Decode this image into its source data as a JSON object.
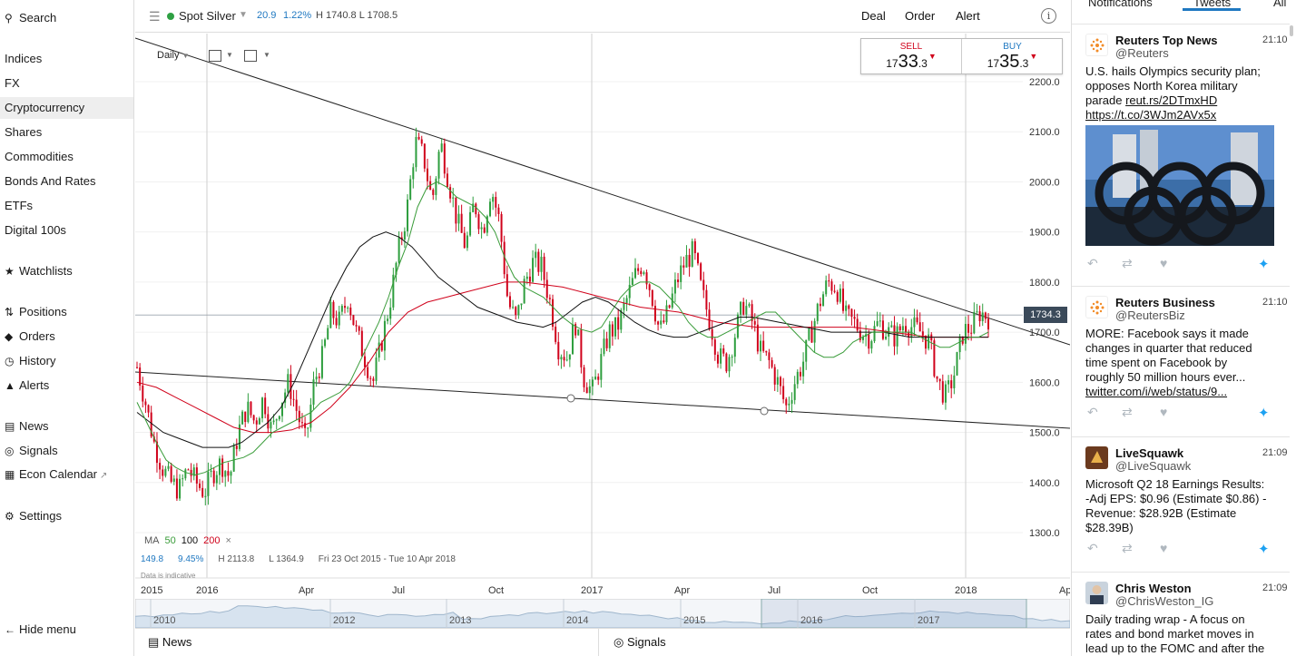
{
  "sidebar": {
    "search": "Search",
    "items": [
      {
        "label": "Indices"
      },
      {
        "label": "FX"
      },
      {
        "label": "Cryptocurrency"
      },
      {
        "label": "Shares"
      },
      {
        "label": "Commodities"
      },
      {
        "label": "Bonds And Rates"
      },
      {
        "label": "ETFs"
      },
      {
        "label": "Digital 100s"
      }
    ],
    "watchlists": "Watchlists",
    "positions": "Positions",
    "orders": "Orders",
    "history": "History",
    "alerts": "Alerts",
    "news": "News",
    "signals": "Signals",
    "econ_calendar": "Econ Calendar",
    "settings": "Settings",
    "hide_menu": "Hide menu"
  },
  "toolbar": {
    "instrument": "Spot Silver",
    "change": "20.9",
    "change_pct": "1.22%",
    "high_low": "H 1740.8  L 1708.5",
    "deal": "Deal",
    "order": "Order",
    "alert": "Alert"
  },
  "chart_controls": {
    "interval": "Daily",
    "sell_label": "SELL",
    "sell_pre": "17",
    "sell_big": "33",
    "sell_post": ".3",
    "buy_label": "BUY",
    "buy_pre": "17",
    "buy_big": "35",
    "buy_post": ".3",
    "current_price": "1734.3"
  },
  "legend": {
    "ma": "MA",
    "ma50": "50",
    "ma100": "100",
    "ma200": "200",
    "close": "×",
    "stat1": "149.8",
    "stat2": "9.45%",
    "stat3": "H 2113.8",
    "stat4": "L 1364.9",
    "range": "Fri 23 Oct 2015 - Tue 10 Apr 2018",
    "indicative": "Data is indicative"
  },
  "chart_data": {
    "type": "candlestick",
    "y_ticks": [
      "2200.0",
      "2100.0",
      "2000.0",
      "1900.0",
      "1800.0",
      "1700.0",
      "1600.0",
      "1500.0",
      "1400.0",
      "1300.0"
    ],
    "ylim": [
      1250,
      2260
    ],
    "x_ticks": [
      "2015",
      "2016",
      "Apr",
      "Jul",
      "Oct",
      "2017",
      "Apr",
      "Jul",
      "Oct",
      "2018",
      "Apr"
    ],
    "current_price": 1734.3,
    "series": [
      {
        "name": "50",
        "color": "#3a9c3a"
      },
      {
        "name": "100",
        "color": "#111111"
      },
      {
        "name": "200",
        "color": "#d0021b"
      }
    ],
    "close_path": [
      1630,
      1560,
      1480,
      1430,
      1400,
      1385,
      1430,
      1400,
      1380,
      1420,
      1440,
      1410,
      1500,
      1550,
      1520,
      1570,
      1500,
      1560,
      1600,
      1540,
      1480,
      1600,
      1650,
      1740,
      1720,
      1770,
      1700,
      1650,
      1600,
      1680,
      1760,
      1860,
      1940,
      2080,
      2050,
      1960,
      2080,
      2000,
      1920,
      1870,
      1960,
      1900,
      1990,
      1920,
      1760,
      1720,
      1800,
      1840,
      1830,
      1760,
      1670,
      1650,
      1720,
      1610,
      1580,
      1640,
      1700,
      1710,
      1760,
      1810,
      1840,
      1780,
      1700,
      1740,
      1800,
      1840,
      1860,
      1780,
      1720,
      1650,
      1640,
      1700,
      1760,
      1720,
      1660,
      1640,
      1600,
      1550,
      1600,
      1640,
      1700,
      1760,
      1800,
      1790,
      1730,
      1720,
      1700,
      1690,
      1720,
      1700,
      1690,
      1720,
      1710,
      1700,
      1680,
      1600,
      1570,
      1620,
      1700,
      1710,
      1740,
      1730
    ],
    "ma50": [
      1560,
      1520,
      1480,
      1445,
      1430,
      1420,
      1415,
      1420,
      1430,
      1440,
      1445,
      1450,
      1460,
      1480,
      1500,
      1510,
      1520,
      1530,
      1540,
      1560,
      1570,
      1580,
      1600,
      1640,
      1680,
      1720,
      1770,
      1830,
      1880,
      1950,
      1990,
      2000,
      1990,
      1970,
      1960,
      1950,
      1930,
      1900,
      1850,
      1810,
      1790,
      1780,
      1770,
      1750,
      1730,
      1715,
      1705,
      1700,
      1710,
      1740,
      1770,
      1790,
      1800,
      1800,
      1790,
      1770,
      1750,
      1720,
      1700,
      1690,
      1690,
      1700,
      1710,
      1720,
      1730,
      1740,
      1740,
      1720,
      1700,
      1680,
      1660,
      1650,
      1650,
      1660,
      1680,
      1690,
      1700,
      1700,
      1700,
      1700,
      1700,
      1690,
      1680,
      1670,
      1670,
      1680,
      1690,
      1690,
      1700
    ],
    "ma100": [
      1540,
      1520,
      1500,
      1490,
      1480,
      1470,
      1470,
      1470,
      1480,
      1500,
      1520,
      1550,
      1600,
      1660,
      1720,
      1780,
      1830,
      1870,
      1890,
      1900,
      1890,
      1870,
      1840,
      1810,
      1790,
      1770,
      1750,
      1740,
      1730,
      1720,
      1715,
      1710,
      1720,
      1740,
      1760,
      1770,
      1760,
      1740,
      1720,
      1705,
      1695,
      1690,
      1690,
      1700,
      1710,
      1720,
      1730,
      1730,
      1725,
      1720,
      1715,
      1710,
      1705,
      1700,
      1700,
      1700,
      1700,
      1700,
      1695,
      1690,
      1690,
      1690,
      1690,
      1690,
      1690,
      1690
    ],
    "ma200": [
      1600,
      1590,
      1570,
      1550,
      1530,
      1510,
      1500,
      1500,
      1505,
      1520,
      1550,
      1590,
      1640,
      1700,
      1740,
      1760,
      1770,
      1780,
      1790,
      1800,
      1800,
      1795,
      1790,
      1780,
      1770,
      1760,
      1750,
      1745,
      1740,
      1730,
      1720,
      1715,
      1710,
      1710,
      1710,
      1710,
      1710,
      1710,
      1705,
      1700,
      1695,
      1690,
      1690,
      1690,
      1690
    ],
    "navigator_years": [
      "2010",
      "2012",
      "2013",
      "2014",
      "2015",
      "2016",
      "2017"
    ]
  },
  "bottombar": {
    "news": "News",
    "signals": "Signals"
  },
  "rightpanel": {
    "tabs": [
      "Notifications",
      "Tweets",
      "All"
    ],
    "tweets": [
      {
        "name": "Reuters Top News",
        "time": "21:10",
        "handle": "@Reuters",
        "text_lines": [
          "U.S. hails Olympics security plan;",
          "opposes North Korea military",
          "parade "
        ],
        "link1": "reut.rs/2DTmxHD",
        "link2": "https://t.co/3WJm2AVx5x"
      },
      {
        "name": "Reuters Business",
        "time": "21:10",
        "handle": "@ReutersBiz",
        "text_lines": [
          "MORE: Facebook says it made",
          "changes in quarter that reduced",
          "time spent on Facebook by",
          "roughly 50 million hours ever..."
        ],
        "link1": "twitter.com/i/web/status/9..."
      },
      {
        "name": "LiveSquawk",
        "time": "21:09",
        "handle": "@LiveSquawk",
        "text_lines": [
          "Microsoft Q2 18 Earnings Results:",
          "-Adj EPS: $0.96 (Estimate $0.86) -",
          "Revenue: $28.92B (Estimate",
          "$28.39B)"
        ]
      },
      {
        "name": "Chris Weston",
        "time": "21:09",
        "handle": "@ChrisWeston_IG",
        "text_lines": [
          "Daily trading wrap - A focus on",
          "rates and bond market moves in",
          "lead up to the FOMC and after the"
        ]
      }
    ]
  }
}
